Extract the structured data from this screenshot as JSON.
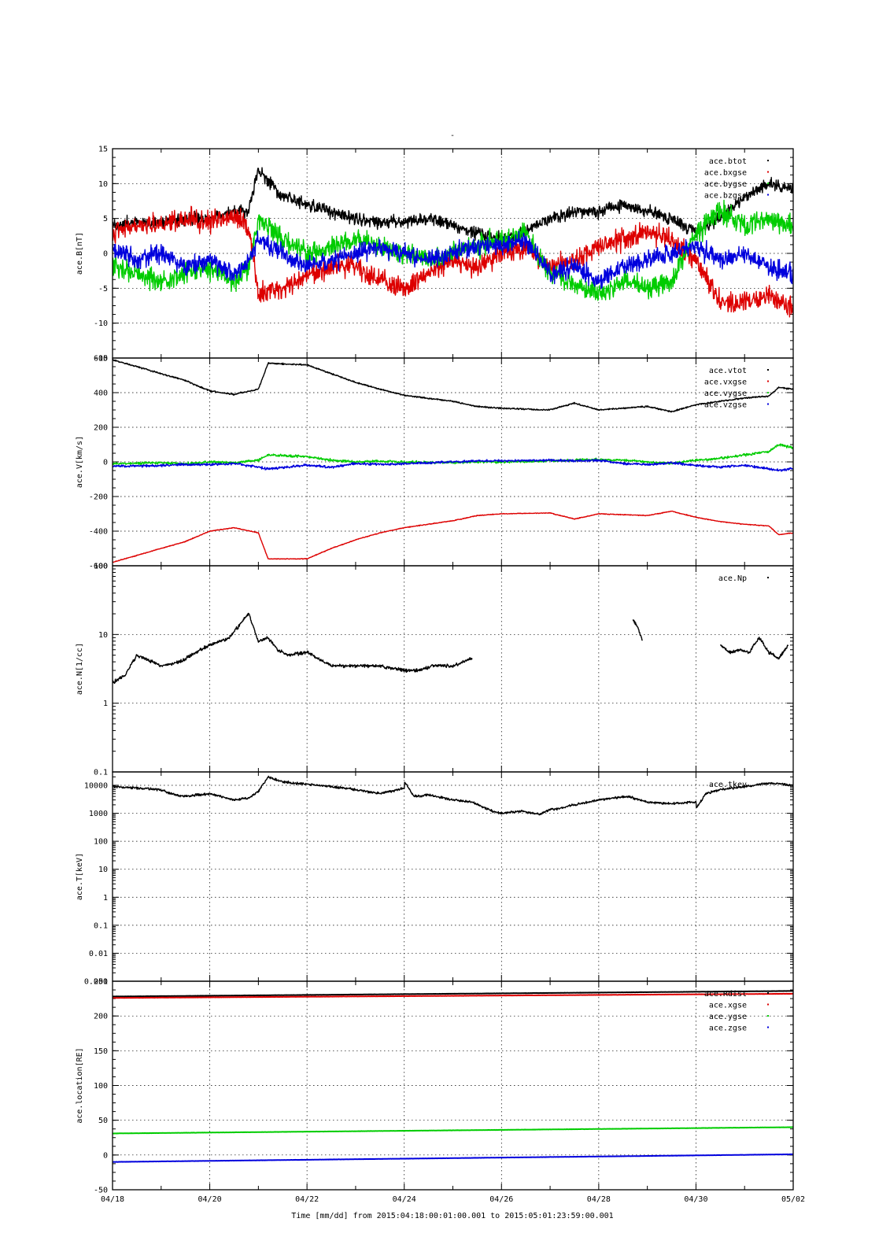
{
  "figure": {
    "title": "-",
    "xlabel": "Time [mm/dd]  from 2015:04:18:00:01:00.001  to  2015:05:01:23:59:00.001",
    "x_ticks": [
      "04/18",
      "04/20",
      "04/22",
      "04/24",
      "04/26",
      "04/28",
      "04/30",
      "05/02"
    ],
    "x_range_days": [
      0,
      14
    ]
  },
  "chart_data": [
    {
      "type": "scatter",
      "ylabel": "ace.B[nT]",
      "ylim": [
        -15,
        15
      ],
      "yscale": "linear",
      "y_ticks": [
        "15",
        "10",
        "5",
        "0",
        "-5",
        "-10",
        "-15"
      ],
      "grid": true,
      "legend_position": "top-right",
      "series": [
        {
          "name": "ace.btot",
          "color": "#000000",
          "x": [
            0,
            0.5,
            1,
            1.5,
            2,
            2.5,
            2.8,
            3,
            3.5,
            4,
            4.5,
            5,
            5.5,
            6,
            6.5,
            7,
            7.5,
            8,
            8.5,
            9,
            9.5,
            10,
            10.5,
            11,
            11.5,
            12,
            12.5,
            13,
            13.5,
            14
          ],
          "y": [
            4,
            4.5,
            4.5,
            5,
            5,
            6,
            6,
            12,
            8,
            7,
            6,
            5,
            4.5,
            4.5,
            5,
            4,
            3,
            2,
            3,
            5,
            6,
            6,
            7,
            6,
            5,
            3,
            5,
            8,
            10,
            9
          ]
        },
        {
          "name": "ace.bxgse",
          "color": "#dd0000",
          "x": [
            0,
            0.5,
            1,
            1.5,
            2,
            2.5,
            2.8,
            3,
            3.5,
            4,
            4.5,
            5,
            5.5,
            6,
            6.5,
            7,
            7.5,
            8,
            8.5,
            9,
            9.5,
            10,
            10.5,
            11,
            11.5,
            12,
            12.5,
            13,
            13.5,
            14
          ],
          "y": [
            3,
            4,
            4,
            5,
            4.5,
            5,
            4,
            -6,
            -5,
            -3,
            -2,
            -2,
            -4,
            -5,
            -3,
            -1,
            -2,
            0,
            1,
            -2,
            -1,
            1,
            2,
            3,
            2,
            -1,
            -7,
            -7,
            -6,
            -8
          ]
        },
        {
          "name": "ace.bygse",
          "color": "#00cc00",
          "x": [
            0,
            0.5,
            1,
            1.5,
            2,
            2.5,
            2.8,
            3,
            3.5,
            4,
            4.5,
            5,
            5.5,
            6,
            6.5,
            7,
            7.5,
            8,
            8.5,
            9,
            9.5,
            10,
            10.5,
            11,
            11.5,
            12,
            12.5,
            13,
            13.5,
            14
          ],
          "y": [
            -2,
            -3,
            -4,
            -3,
            -2,
            -4,
            -2,
            5,
            2,
            0,
            1,
            2,
            1,
            0,
            -1,
            0,
            1,
            2,
            3,
            -3,
            -4,
            -6,
            -4,
            -5,
            -4,
            3,
            6,
            4,
            5,
            4
          ]
        },
        {
          "name": "ace.bzgse",
          "color": "#0000dd",
          "x": [
            0,
            0.5,
            1,
            1.5,
            2,
            2.5,
            2.8,
            3,
            3.5,
            4,
            4.5,
            5,
            5.5,
            6,
            6.5,
            7,
            7.5,
            8,
            8.5,
            9,
            9.5,
            10,
            10.5,
            11,
            11.5,
            12,
            12.5,
            13,
            13.5,
            14
          ],
          "y": [
            1,
            -1,
            0,
            -2,
            -1,
            -3,
            -1,
            2,
            0,
            -2,
            -1,
            0,
            1,
            0,
            -1,
            0,
            1,
            1,
            2,
            -3,
            -2,
            -4,
            -2,
            -1,
            0,
            1,
            -1,
            0,
            -2,
            -3
          ]
        }
      ]
    },
    {
      "type": "scatter",
      "ylabel": "ace.V[km/s]",
      "ylim": [
        -600,
        600
      ],
      "yscale": "linear",
      "y_ticks": [
        "600",
        "400",
        "200",
        "0",
        "-200",
        "-400",
        "-600"
      ],
      "grid": true,
      "legend_position": "top-right",
      "series": [
        {
          "name": "ace.vtot",
          "color": "#000000",
          "x": [
            0,
            1,
            1.5,
            2,
            2.5,
            3,
            3.2,
            4,
            4.5,
            5,
            5.5,
            6,
            7,
            7.5,
            8,
            9,
            9.5,
            10,
            10.5,
            11,
            11.5,
            12,
            12.5,
            13,
            13.5,
            13.7,
            14
          ],
          "y": [
            590,
            510,
            470,
            410,
            390,
            420,
            570,
            560,
            510,
            460,
            420,
            385,
            350,
            320,
            310,
            300,
            340,
            300,
            310,
            320,
            290,
            330,
            350,
            370,
            380,
            430,
            420
          ]
        },
        {
          "name": "ace.vxgse",
          "color": "#dd0000",
          "x": [
            0,
            1,
            1.5,
            2,
            2.5,
            3,
            3.2,
            4,
            4.5,
            5,
            5.5,
            6,
            7,
            7.5,
            8,
            9,
            9.5,
            10,
            10.5,
            11,
            11.5,
            12,
            12.5,
            13,
            13.5,
            13.7,
            14
          ],
          "y": [
            -580,
            -500,
            -460,
            -400,
            -380,
            -410,
            -560,
            -560,
            -500,
            -450,
            -410,
            -380,
            -340,
            -310,
            -300,
            -295,
            -330,
            -300,
            -305,
            -310,
            -285,
            -320,
            -345,
            -360,
            -370,
            -420,
            -410
          ]
        },
        {
          "name": "ace.vygse",
          "color": "#00cc00",
          "x": [
            0,
            1,
            1.5,
            2,
            2.5,
            3,
            3.2,
            4,
            4.5,
            5,
            5.5,
            6,
            7,
            7.5,
            8,
            9,
            9.5,
            10,
            10.5,
            11,
            11.5,
            12,
            12.5,
            13,
            13.5,
            13.7,
            14
          ],
          "y": [
            -10,
            -5,
            -10,
            0,
            -5,
            10,
            40,
            30,
            10,
            0,
            5,
            0,
            -5,
            0,
            0,
            5,
            10,
            15,
            10,
            0,
            -10,
            10,
            20,
            40,
            60,
            100,
            80
          ]
        },
        {
          "name": "ace.vzgse",
          "color": "#0000dd",
          "x": [
            0,
            1,
            1.5,
            2,
            2.5,
            3,
            3.2,
            4,
            4.5,
            5,
            5.5,
            6,
            7,
            7.5,
            8,
            9,
            9.5,
            10,
            10.5,
            11,
            11.5,
            12,
            12.5,
            13,
            13.5,
            13.7,
            14
          ],
          "y": [
            -25,
            -20,
            -15,
            -15,
            -10,
            -30,
            -40,
            -20,
            -30,
            -10,
            -15,
            -10,
            0,
            5,
            5,
            10,
            5,
            10,
            -10,
            -15,
            -5,
            -20,
            -30,
            -20,
            -40,
            -50,
            -40
          ]
        }
      ]
    },
    {
      "type": "scatter",
      "ylabel": "ace.N[1/cc]",
      "ylim": [
        0.1,
        100
      ],
      "yscale": "log",
      "y_ticks": [
        "100",
        "10",
        "1",
        "0.1"
      ],
      "grid": true,
      "legend_position": "top-right",
      "series": [
        {
          "name": "ace.Np",
          "color": "#000000",
          "x": [
            0,
            0.25,
            0.5,
            1,
            1.4,
            1.6,
            2,
            2.4,
            2.8,
            3,
            3.2,
            3.4,
            3.6,
            4,
            4.5,
            5,
            5.5,
            6,
            6.3,
            6.6,
            7,
            7.4
          ],
          "y": [
            2,
            2.5,
            5,
            3.5,
            4,
            5,
            7,
            9,
            20,
            8,
            9,
            6,
            5,
            5.5,
            3.5,
            3.5,
            3.5,
            3,
            3,
            3.5,
            3.5,
            4.5
          ]
        },
        {
          "name": "ace.Np",
          "color": "#000000",
          "x": [
            10.7,
            10.8,
            10.9
          ],
          "y": [
            17,
            13,
            8
          ]
        },
        {
          "name": "ace.Np",
          "color": "#000000",
          "x": [
            12.5,
            12.7,
            12.9,
            13.1,
            13.3,
            13.5,
            13.7,
            13.9
          ],
          "y": [
            7,
            5.5,
            6,
            5.5,
            9,
            5.5,
            4.5,
            7
          ]
        }
      ]
    },
    {
      "type": "scatter",
      "ylabel": "ace.T[keV]",
      "ylim": [
        0.001,
        30000
      ],
      "yscale": "log",
      "y_ticks": [
        "10000",
        "1000",
        "100",
        "10",
        "1",
        "0.1",
        "0.01",
        "0.001"
      ],
      "grid": true,
      "legend_position": "top-right",
      "series": [
        {
          "name": "ace.tkev",
          "color": "#000000",
          "x": [
            0,
            0.5,
            1,
            1.2,
            1.5,
            2,
            2.5,
            2.8,
            3,
            3.2,
            3.5,
            4,
            4.5,
            5,
            5.5,
            6,
            6,
            6.2,
            6.5,
            7,
            7.4,
            7.8,
            8,
            8.4,
            8.8,
            9,
            9.2,
            9.5,
            10,
            10.3,
            10.6,
            11,
            11.5,
            12,
            12,
            12.2,
            12.5,
            13,
            13.5,
            14
          ],
          "y": [
            9000,
            8000,
            7000,
            5000,
            4000,
            5000,
            3000,
            3500,
            6000,
            20000,
            13000,
            11000,
            9000,
            7000,
            5000,
            8000,
            14000,
            4000,
            4500,
            3000,
            2500,
            1200,
            1000,
            1200,
            900,
            1400,
            1500,
            2000,
            3000,
            3500,
            4000,
            2500,
            2200,
            2500,
            1500,
            5000,
            7000,
            9000,
            12000,
            10000
          ]
        }
      ]
    },
    {
      "type": "line",
      "ylabel": "ace.location[RE]",
      "ylim": [
        -50,
        250
      ],
      "yscale": "linear",
      "y_ticks": [
        "250",
        "200",
        "150",
        "100",
        "50",
        "0",
        "-50"
      ],
      "grid": true,
      "legend_position": "top-right",
      "series": [
        {
          "name": "ace.Rdist",
          "color": "#000000",
          "x": [
            0,
            14
          ],
          "y": [
            228,
            236
          ]
        },
        {
          "name": "ace.xgse",
          "color": "#dd0000",
          "x": [
            0,
            14
          ],
          "y": [
            226,
            232
          ]
        },
        {
          "name": "ace.ygse",
          "color": "#00cc00",
          "x": [
            0,
            14
          ],
          "y": [
            31,
            40
          ]
        },
        {
          "name": "ace.zgse",
          "color": "#0000dd",
          "x": [
            0,
            14
          ],
          "y": [
            -10,
            1
          ]
        }
      ]
    }
  ]
}
